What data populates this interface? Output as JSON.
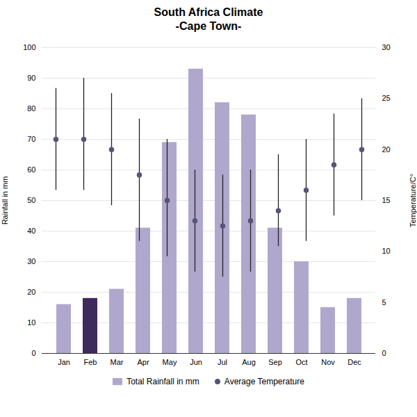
{
  "chart_data": {
    "type": "bar",
    "title": "South Africa Climate\n-Cape Town-",
    "categories": [
      "Jan",
      "Feb",
      "Mar",
      "Apr",
      "May",
      "Jun",
      "Jul",
      "Aug",
      "Sep",
      "Oct",
      "Nov",
      "Dec"
    ],
    "series": [
      {
        "name": "Total Rainfall in mm",
        "type": "bar",
        "color": "#b0a8cc",
        "colors": [
          "#b0a8cc",
          "#3d2b5e",
          "#b0a8cc",
          "#b0a8cc",
          "#b0a8cc",
          "#b0a8cc",
          "#b0a8cc",
          "#b0a8cc",
          "#b0a8cc",
          "#b0a8cc",
          "#b0a8cc",
          "#b0a8cc"
        ],
        "values": [
          16,
          18,
          21,
          41,
          69,
          93,
          82,
          78,
          41,
          30,
          15,
          18
        ]
      },
      {
        "name": "Average Temperature",
        "type": "scatter",
        "axis": "y2",
        "color": "#555577",
        "marker": "circle",
        "values": [
          21,
          21,
          20,
          17.5,
          15,
          13,
          12.5,
          13,
          14,
          16,
          18.5,
          20
        ],
        "high": [
          26,
          27,
          25.5,
          23,
          21,
          18,
          17.5,
          18,
          19.5,
          21,
          23.5,
          25
        ],
        "low": [
          16,
          16,
          14.5,
          11,
          9.5,
          8,
          7.5,
          8,
          10.5,
          11,
          13.5,
          15
        ]
      }
    ],
    "ylabel": "Rainfall in mm",
    "y2label": "Temperature/C°",
    "ylim": [
      0,
      100
    ],
    "yticks": [
      0,
      10,
      20,
      30,
      40,
      50,
      60,
      70,
      80,
      90,
      100
    ],
    "y2lim": [
      0,
      30
    ],
    "y2ticks": [
      0,
      5,
      10,
      15,
      20,
      25,
      30
    ],
    "grid": true,
    "legend": "bottom"
  }
}
